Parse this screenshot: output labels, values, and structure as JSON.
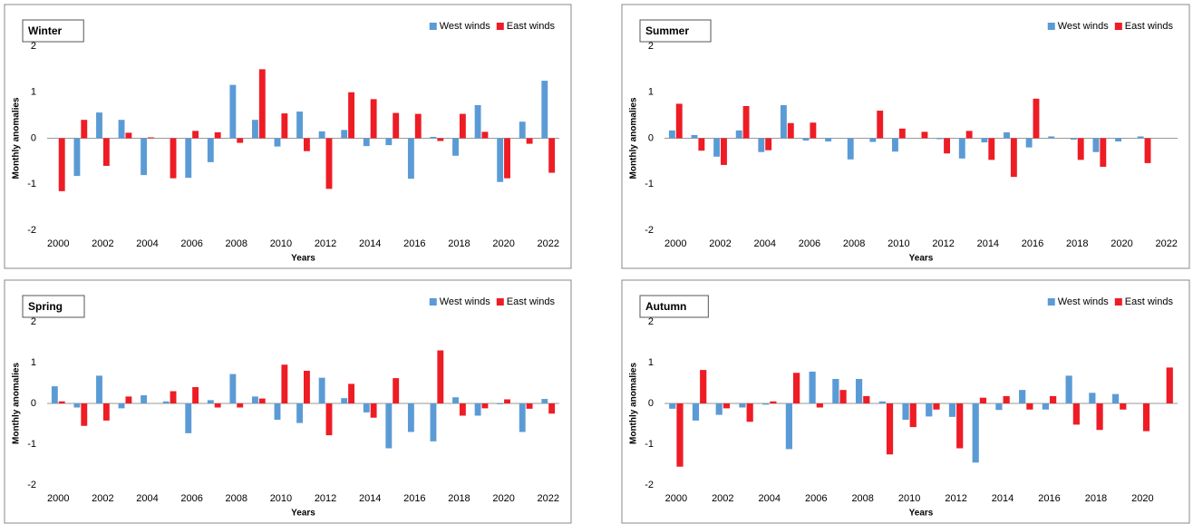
{
  "chart_data": [
    {
      "type": "bar",
      "title": "Winter",
      "xlabel": "Years",
      "ylabel": "Monthly anomalies",
      "legend": "upper right",
      "x": [
        2000,
        2001,
        2002,
        2003,
        2004,
        2005,
        2006,
        2007,
        2008,
        2009,
        2010,
        2011,
        2012,
        2013,
        2014,
        2015,
        2016,
        2017,
        2018,
        2019,
        2020,
        2021,
        2022
      ],
      "xlim": [
        1999.5,
        2022.5
      ],
      "xticks": [
        2000,
        2002,
        2004,
        2006,
        2008,
        2010,
        2012,
        2014,
        2016,
        2018,
        2020,
        2022
      ],
      "ylim": [
        -2,
        2
      ],
      "yticks": [
        -2,
        -1,
        0,
        1,
        2
      ],
      "grid": false,
      "series": [
        {
          "name": "West winds",
          "color": "#5b9bd5",
          "values": [
            0,
            -0.82,
            0.56,
            0.4,
            -0.8,
            0,
            -0.86,
            -0.52,
            1.16,
            0.4,
            -0.18,
            0.58,
            0.15,
            0.18,
            -0.17,
            -0.15,
            -0.88,
            0.03,
            -0.38,
            0.72,
            -0.95,
            0.36,
            1.25
          ]
        },
        {
          "name": "East winds",
          "color": "#ee1c25",
          "values": [
            -1.15,
            0.4,
            -0.6,
            0.12,
            0.02,
            -0.87,
            0.16,
            0.13,
            -0.1,
            1.5,
            0.54,
            -0.28,
            -1.1,
            1.0,
            0.85,
            0.55,
            0.53,
            -0.06,
            0.53,
            0.14,
            -0.87,
            -0.12,
            -0.75
          ]
        }
      ]
    },
    {
      "type": "bar",
      "title": "Summer",
      "xlabel": "Years",
      "ylabel": "Monthly anomalies",
      "legend": "upper right",
      "x": [
        2000,
        2001,
        2002,
        2003,
        2004,
        2005,
        2006,
        2007,
        2008,
        2009,
        2010,
        2011,
        2012,
        2013,
        2014,
        2015,
        2016,
        2017,
        2018,
        2019,
        2020,
        2021,
        2022
      ],
      "xlim": [
        1999.5,
        2022.5
      ],
      "xticks": [
        2000,
        2002,
        2004,
        2006,
        2008,
        2010,
        2012,
        2014,
        2016,
        2018,
        2020,
        2022
      ],
      "ylim": [
        -2,
        2
      ],
      "yticks": [
        -2,
        -1,
        0,
        1,
        2
      ],
      "grid": false,
      "series": [
        {
          "name": "West winds",
          "color": "#5b9bd5",
          "values": [
            0.17,
            0.07,
            -0.4,
            0.17,
            -0.3,
            0.72,
            -0.05,
            -0.07,
            -0.46,
            -0.08,
            -0.29,
            0,
            -0.02,
            -0.44,
            -0.09,
            0.13,
            -0.2,
            0.04,
            -0.03,
            -0.3,
            -0.07,
            0.04,
            null
          ]
        },
        {
          "name": "East winds",
          "color": "#ee1c25",
          "values": [
            0.75,
            -0.27,
            -0.58,
            0.7,
            -0.26,
            0.33,
            0.34,
            0,
            0,
            0.6,
            0.21,
            0.14,
            -0.33,
            0.16,
            -0.47,
            -0.84,
            0.86,
            0,
            -0.47,
            -0.62,
            0,
            -0.54,
            null
          ]
        }
      ]
    },
    {
      "type": "bar",
      "title": "Spring",
      "xlabel": "Years",
      "ylabel": "Monthly anomalies",
      "legend": "upper right",
      "x": [
        2000,
        2001,
        2002,
        2003,
        2004,
        2005,
        2006,
        2007,
        2008,
        2009,
        2010,
        2011,
        2012,
        2013,
        2014,
        2015,
        2016,
        2017,
        2018,
        2019,
        2020,
        2021,
        2022
      ],
      "xlim": [
        1999.5,
        2022.5
      ],
      "xticks": [
        2000,
        2002,
        2004,
        2006,
        2008,
        2010,
        2012,
        2014,
        2016,
        2018,
        2020,
        2022
      ],
      "ylim": [
        -2,
        2
      ],
      "yticks": [
        -2,
        -1,
        0,
        1,
        2
      ],
      "grid": false,
      "series": [
        {
          "name": "West winds",
          "color": "#5b9bd5",
          "values": [
            0.42,
            -0.1,
            0.68,
            -0.12,
            0.2,
            0.05,
            -0.73,
            0.08,
            0.72,
            0.17,
            -0.4,
            -0.48,
            0.63,
            0.13,
            -0.22,
            -1.1,
            -0.7,
            -0.93,
            0.15,
            -0.3,
            -0.02,
            -0.7,
            0.11
          ]
        },
        {
          "name": "East winds",
          "color": "#ee1c25",
          "values": [
            0.05,
            -0.55,
            -0.42,
            0.17,
            0,
            0.3,
            0.4,
            -0.1,
            -0.1,
            0.12,
            0.95,
            0.8,
            -0.78,
            0.48,
            -0.35,
            0.62,
            0,
            1.3,
            -0.3,
            -0.12,
            0.1,
            -0.13,
            -0.25
          ]
        }
      ]
    },
    {
      "type": "bar",
      "title": "Autumn",
      "xlabel": "Years",
      "ylabel": "Monthly anomalies",
      "legend": "upper right",
      "x": [
        2000,
        2001,
        2002,
        2003,
        2004,
        2005,
        2006,
        2007,
        2008,
        2009,
        2010,
        2011,
        2012,
        2013,
        2014,
        2015,
        2016,
        2017,
        2018,
        2019,
        2020,
        2021
      ],
      "xlim": [
        1999.5,
        2021.5
      ],
      "xticks": [
        2000,
        2002,
        2004,
        2006,
        2008,
        2010,
        2012,
        2014,
        2016,
        2018,
        2020
      ],
      "ylim": [
        -2,
        2
      ],
      "yticks": [
        -2,
        -1,
        0,
        1,
        2
      ],
      "grid": false,
      "series": [
        {
          "name": "West winds",
          "color": "#5b9bd5",
          "values": [
            -0.13,
            -0.42,
            -0.28,
            -0.1,
            -0.03,
            -1.12,
            0.78,
            0.6,
            0.6,
            0.05,
            -0.4,
            -0.32,
            -0.33,
            -1.45,
            -0.16,
            0.33,
            -0.15,
            0.68,
            0.26,
            0.23,
            0,
            0
          ]
        },
        {
          "name": "East winds",
          "color": "#ee1c25",
          "values": [
            -1.55,
            0.82,
            -0.12,
            -0.45,
            0.05,
            0.75,
            -0.1,
            0.33,
            0.18,
            -1.25,
            -0.58,
            -0.15,
            -1.1,
            0.14,
            0.18,
            -0.15,
            0.18,
            -0.52,
            -0.65,
            -0.15,
            -0.68,
            0.88
          ]
        }
      ]
    }
  ]
}
